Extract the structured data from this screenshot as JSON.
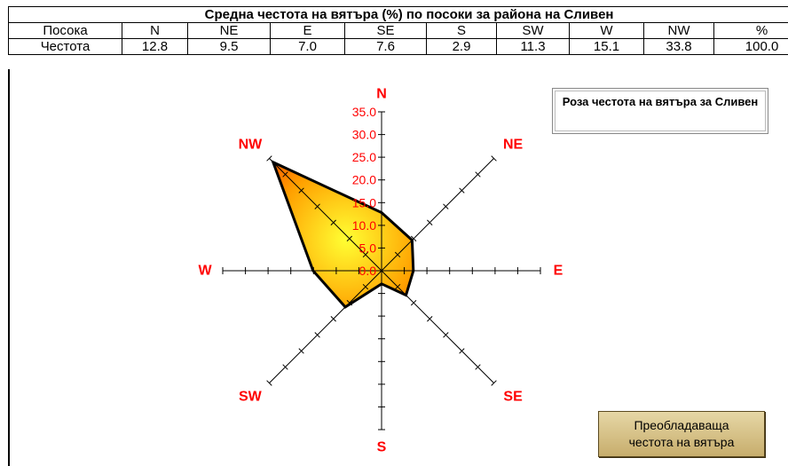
{
  "table": {
    "title": "Средна честота на вятъра (%) по посоки за района на Сливен",
    "header_label": "Посока",
    "row_label": "Честота",
    "directions": [
      "N",
      "NE",
      "E",
      "SE",
      "S",
      "SW",
      "W",
      "NW",
      "%"
    ],
    "values": [
      "12.8",
      "9.5",
      "7.0",
      "7.6",
      "2.9",
      "11.3",
      "15.1",
      "33.8",
      "100.0"
    ]
  },
  "chart_data": {
    "type": "radar",
    "title": "Роза честота на вятъра за Сливен",
    "categories": [
      "N",
      "NE",
      "E",
      "SE",
      "S",
      "SW",
      "W",
      "NW"
    ],
    "series": [
      {
        "values": [
          12.8,
          9.5,
          7.0,
          7.6,
          2.9,
          11.3,
          15.1,
          33.8
        ]
      }
    ],
    "radial_ticks": [
      "0.0",
      "5.0",
      "10.0",
      "15.0",
      "20.0",
      "25.0",
      "30.0",
      "35.0"
    ],
    "rlim": [
      0,
      35
    ],
    "colors": {
      "fill_center": "#ffff33",
      "fill_edge": "#ff2a00",
      "outline": "#000000",
      "labels": "#ff0000"
    }
  },
  "button": {
    "label_line1": "Преобладаваща",
    "label_line2": "честота на вятъра"
  }
}
